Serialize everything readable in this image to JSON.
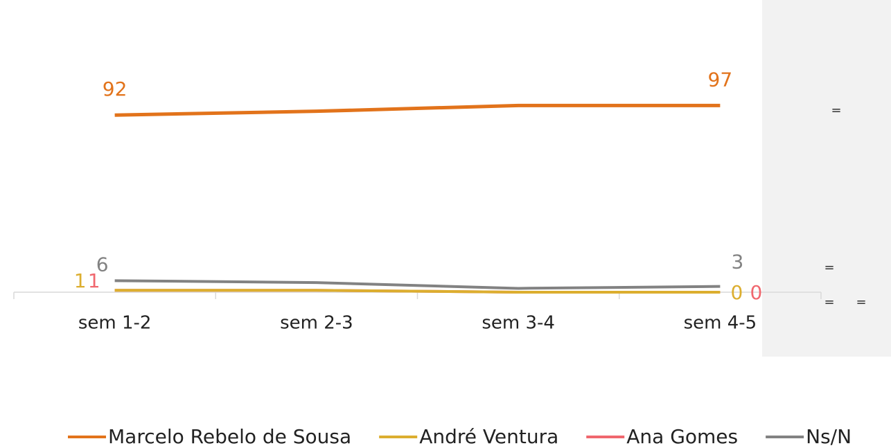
{
  "chart_data": {
    "type": "line",
    "categories": [
      "sem 1-2",
      "sem 2-3",
      "sem 3-4",
      "sem 4-5"
    ],
    "series": [
      {
        "name": "Marcelo Rebelo de Sousa",
        "color": "#e2731b",
        "values": [
          92,
          94,
          97,
          97
        ]
      },
      {
        "name": "André Ventura",
        "color": "#dcae2f",
        "values": [
          1,
          1,
          0,
          0
        ]
      },
      {
        "name": "Ana Gomes",
        "color": "#f0676e",
        "values": [
          1,
          1,
          0,
          0
        ]
      },
      {
        "name": "Ns/N",
        "color": "#828282",
        "values": [
          6,
          5,
          2,
          3
        ]
      }
    ],
    "ylim": [
      0,
      100
    ],
    "annotations": [
      "=",
      "=",
      "=",
      "="
    ]
  }
}
